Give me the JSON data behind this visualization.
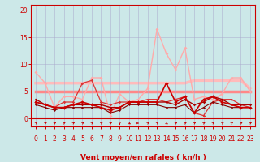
{
  "background_color": "#cce8e8",
  "grid_color": "#aaaacc",
  "xlabel": "Vent moyen/en rafales ( kn/h )",
  "xlabel_color": "#cc0000",
  "xlabel_fontsize": 6.5,
  "xlim": [
    -0.5,
    23.5
  ],
  "ylim": [
    -1.5,
    21
  ],
  "yticks": [
    0,
    5,
    10,
    15,
    20
  ],
  "xticks": [
    0,
    1,
    2,
    3,
    4,
    5,
    6,
    7,
    8,
    9,
    10,
    11,
    12,
    13,
    14,
    15,
    16,
    17,
    18,
    19,
    20,
    21,
    22,
    23
  ],
  "tick_fontsize": 5.5,
  "lines": [
    {
      "x": [
        0,
        1,
        2,
        3,
        4,
        5,
        6,
        7,
        8,
        9,
        10,
        11,
        12,
        13,
        14,
        15,
        16,
        17,
        18,
        19,
        20,
        21,
        22,
        23
      ],
      "y": [
        8.5,
        6.5,
        2.0,
        4.0,
        4.0,
        3.5,
        7.5,
        7.5,
        0.5,
        4.5,
        3.0,
        3.5,
        5.5,
        16.5,
        12.0,
        9.0,
        13.0,
        3.5,
        4.0,
        3.5,
        4.5,
        7.5,
        7.5,
        5.0
      ],
      "color": "#ffaaaa",
      "linewidth": 1.0,
      "marker": "D",
      "markersize": 2.0,
      "zorder": 2
    },
    {
      "x": [
        0,
        1,
        2,
        3,
        4,
        5,
        6,
        7,
        8,
        9,
        10,
        11,
        12,
        13,
        14,
        15,
        16,
        17,
        18,
        19,
        20,
        21,
        22,
        23
      ],
      "y": [
        6.5,
        6.5,
        6.5,
        6.5,
        6.5,
        6.5,
        6.5,
        6.5,
        6.5,
        6.5,
        6.5,
        6.5,
        6.5,
        6.5,
        6.5,
        6.5,
        6.5,
        7.0,
        7.0,
        7.0,
        7.0,
        7.0,
        7.0,
        5.5
      ],
      "color": "#ffbbbb",
      "linewidth": 2.5,
      "marker": null,
      "markersize": 0,
      "zorder": 1
    },
    {
      "x": [
        0,
        1,
        2,
        3,
        4,
        5,
        6,
        7,
        8,
        9,
        10,
        11,
        12,
        13,
        14,
        15,
        16,
        17,
        18,
        19,
        20,
        21,
        22,
        23
      ],
      "y": [
        5.0,
        5.0,
        5.0,
        5.0,
        5.0,
        5.0,
        5.0,
        5.0,
        5.0,
        5.0,
        5.0,
        5.0,
        5.0,
        5.0,
        5.0,
        5.0,
        5.0,
        5.0,
        5.0,
        5.0,
        5.0,
        5.0,
        5.0,
        5.0
      ],
      "color": "#ff8888",
      "linewidth": 2.5,
      "marker": null,
      "markersize": 0,
      "zorder": 1
    },
    {
      "x": [
        0,
        1,
        2,
        3,
        4,
        5,
        6,
        7,
        8,
        9,
        10,
        11,
        12,
        13,
        14,
        15,
        16,
        17,
        18,
        19,
        20,
        21,
        22,
        23
      ],
      "y": [
        3.0,
        2.5,
        2.0,
        3.0,
        3.0,
        6.5,
        7.0,
        3.0,
        2.5,
        3.0,
        3.0,
        3.0,
        3.5,
        3.5,
        3.0,
        3.5,
        4.0,
        1.0,
        0.5,
        3.0,
        3.5,
        3.5,
        2.5,
        2.0
      ],
      "color": "#dd3333",
      "linewidth": 0.9,
      "marker": "D",
      "markersize": 1.8,
      "zorder": 3
    },
    {
      "x": [
        0,
        1,
        2,
        3,
        4,
        5,
        6,
        7,
        8,
        9,
        10,
        11,
        12,
        13,
        14,
        15,
        16,
        17,
        18,
        19,
        20,
        21,
        22,
        23
      ],
      "y": [
        3.0,
        2.5,
        2.0,
        2.0,
        2.5,
        3.0,
        2.5,
        2.0,
        1.5,
        2.0,
        3.0,
        3.0,
        3.0,
        3.0,
        6.5,
        3.0,
        4.0,
        1.0,
        3.5,
        4.0,
        3.0,
        2.5,
        2.0,
        2.0
      ],
      "color": "#cc0000",
      "linewidth": 1.2,
      "marker": "D",
      "markersize": 2.2,
      "zorder": 4
    },
    {
      "x": [
        0,
        1,
        2,
        3,
        4,
        5,
        6,
        7,
        8,
        9,
        10,
        11,
        12,
        13,
        14,
        15,
        16,
        17,
        18,
        19,
        20,
        21,
        22,
        23
      ],
      "y": [
        3.5,
        2.5,
        2.0,
        2.0,
        2.5,
        2.5,
        2.5,
        2.5,
        2.0,
        2.0,
        3.0,
        3.0,
        3.0,
        3.0,
        3.0,
        2.5,
        3.5,
        2.5,
        3.0,
        4.0,
        3.5,
        2.5,
        2.5,
        2.5
      ],
      "color": "#aa0000",
      "linewidth": 1.0,
      "marker": "D",
      "markersize": 1.8,
      "zorder": 3
    },
    {
      "x": [
        0,
        1,
        2,
        3,
        4,
        5,
        6,
        7,
        8,
        9,
        10,
        11,
        12,
        13,
        14,
        15,
        16,
        17,
        18,
        19,
        20,
        21,
        22,
        23
      ],
      "y": [
        2.5,
        2.0,
        1.5,
        2.0,
        2.0,
        2.0,
        2.0,
        2.0,
        1.0,
        1.5,
        2.5,
        2.5,
        2.5,
        2.5,
        2.0,
        2.0,
        2.5,
        1.0,
        2.0,
        3.0,
        2.5,
        2.0,
        2.0,
        2.0
      ],
      "color": "#880000",
      "linewidth": 0.8,
      "marker": "D",
      "markersize": 1.5,
      "zorder": 3
    }
  ],
  "wind_arrows": {
    "x": [
      0,
      1,
      2,
      3,
      4,
      5,
      6,
      7,
      8,
      9,
      10,
      11,
      12,
      13,
      14,
      15,
      16,
      17,
      18,
      19,
      20,
      21,
      22,
      23
    ],
    "angles": [
      45,
      45,
      45,
      45,
      45,
      45,
      45,
      45,
      45,
      180,
      135,
      90,
      45,
      45,
      135,
      45,
      45,
      45,
      45,
      45,
      45,
      45,
      45,
      45
    ],
    "color": "#cc0000"
  }
}
